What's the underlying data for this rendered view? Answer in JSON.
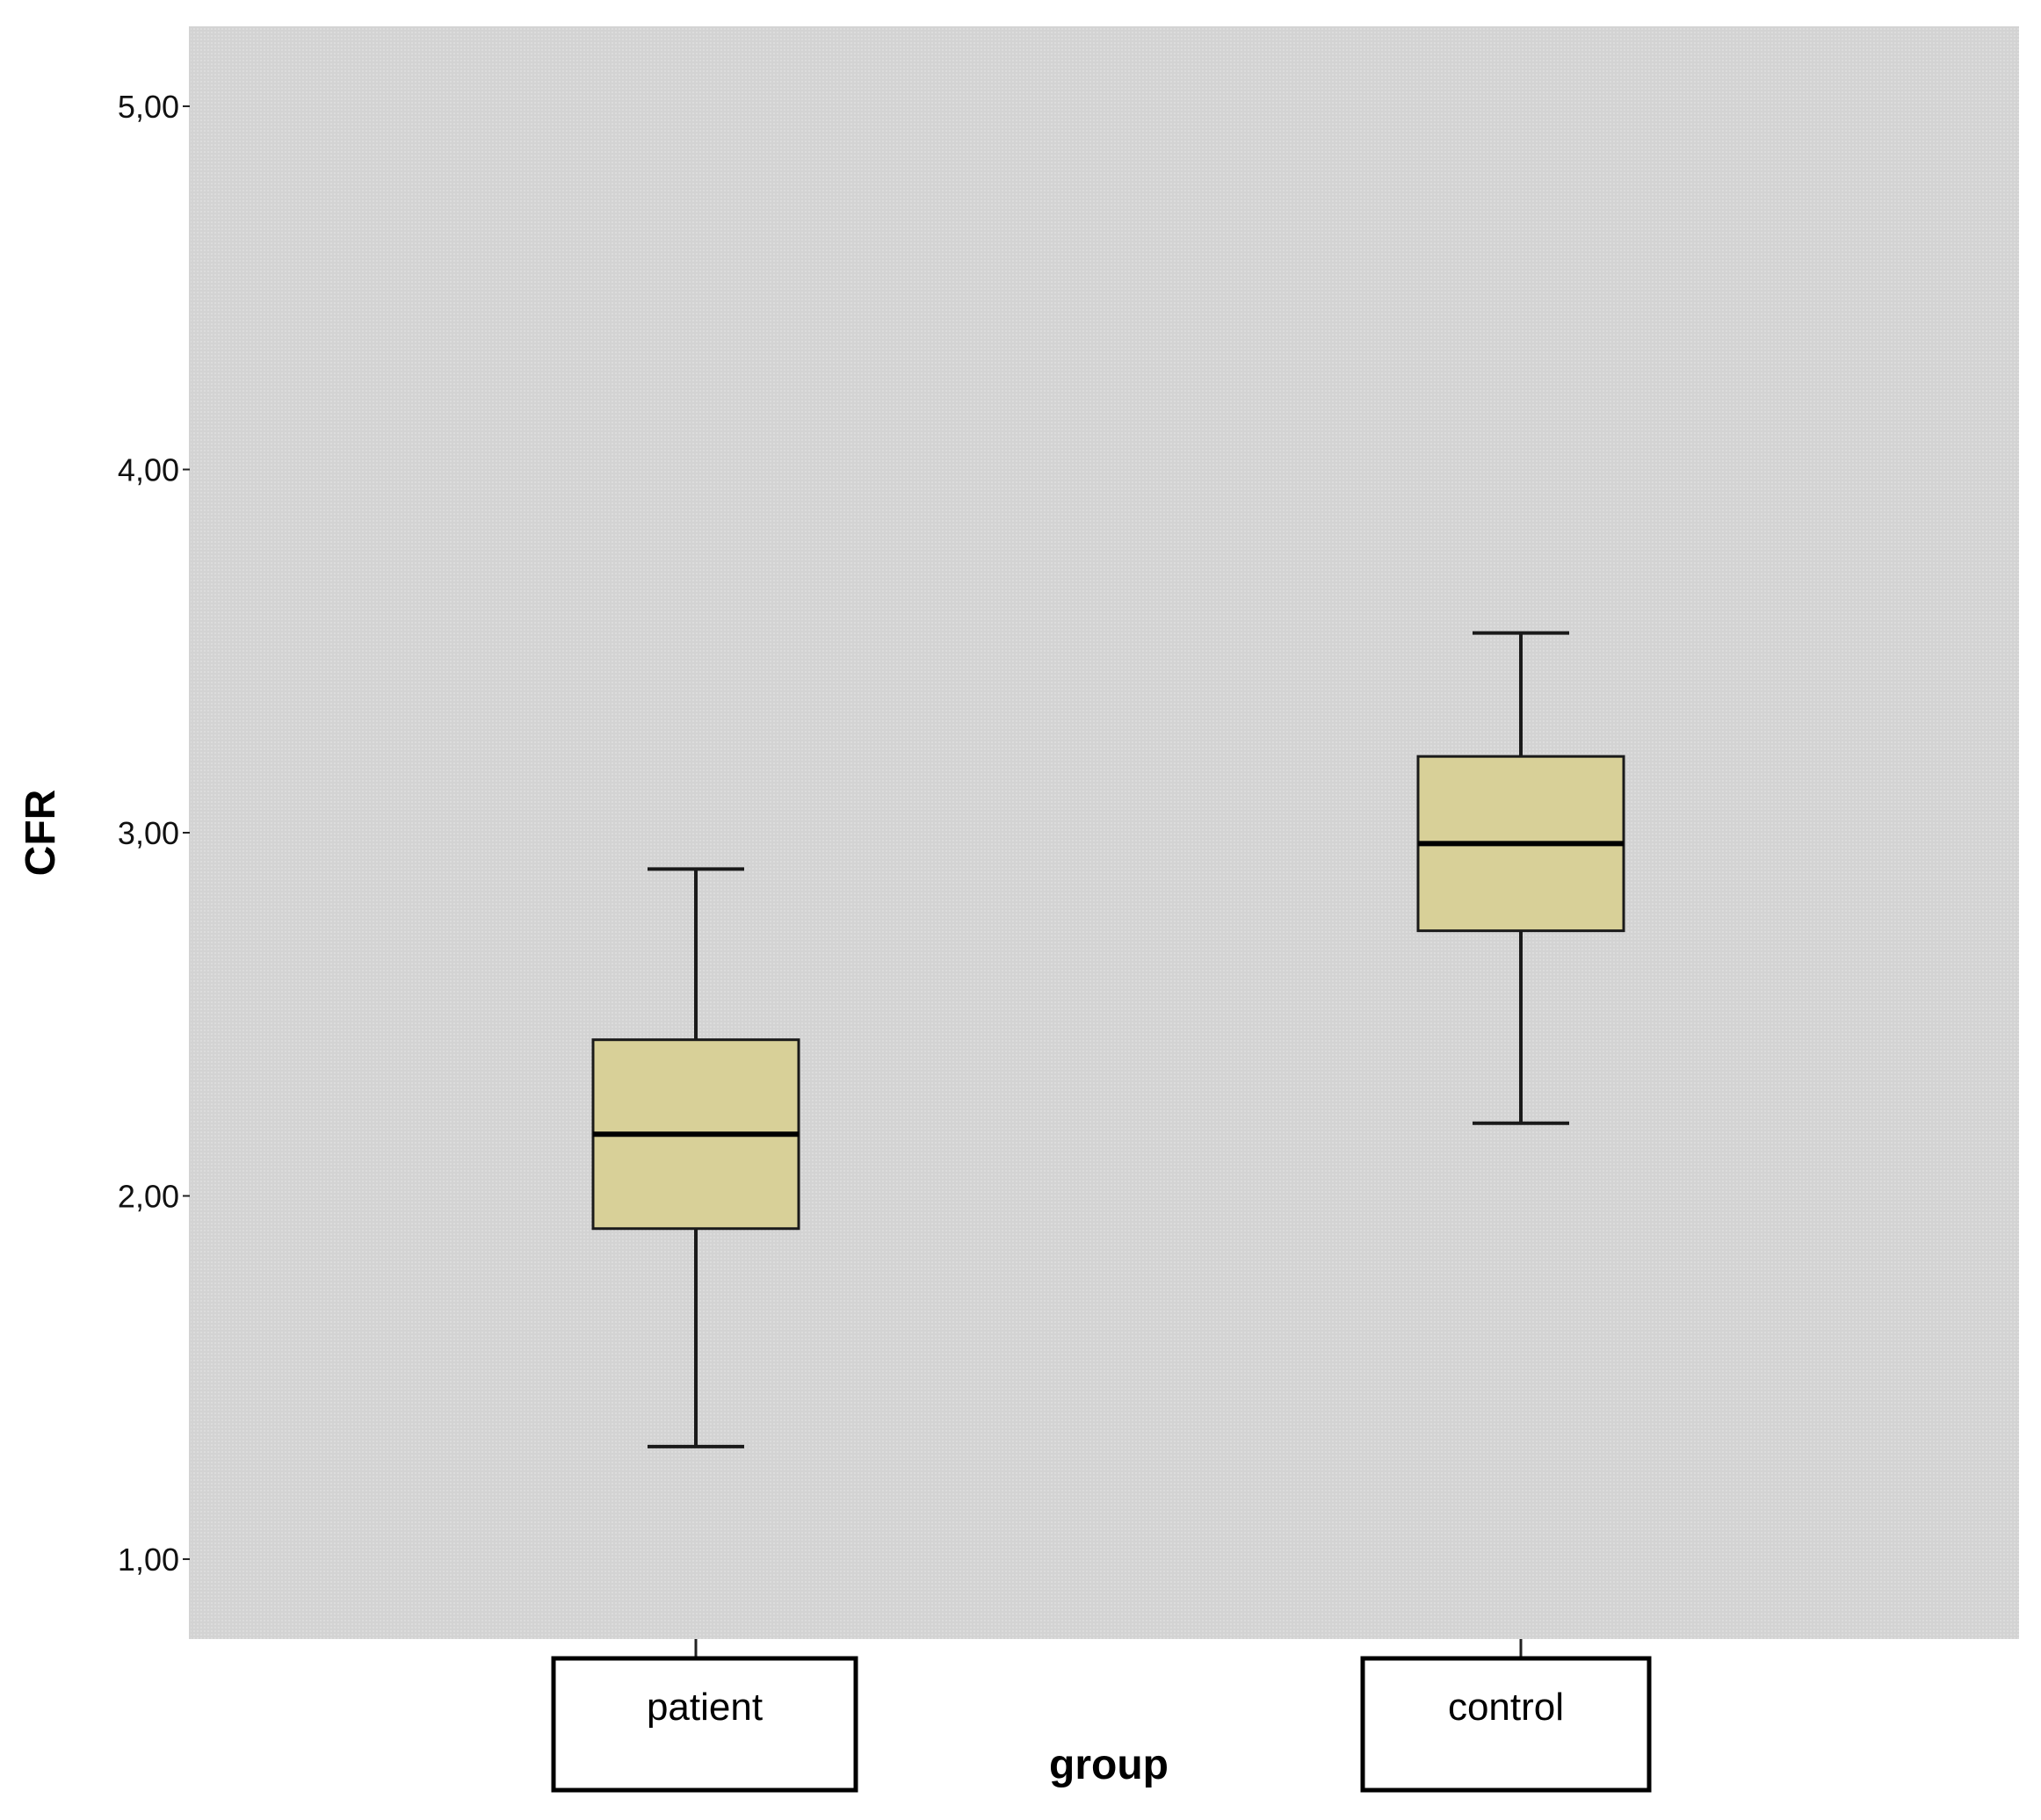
{
  "chart_data": {
    "type": "boxplot",
    "xlabel": "group",
    "ylabel": "CFR",
    "ylim": [
      0.78,
      5.22
    ],
    "yticks": [
      1.0,
      2.0,
      3.0,
      4.0,
      5.0
    ],
    "ytick_labels": [
      "1,00",
      "2,00",
      "3,00",
      "4,00",
      "5,00"
    ],
    "categories": [
      "patient",
      "control"
    ],
    "boxes": [
      {
        "category": "patient",
        "whisker_low": 1.31,
        "q1": 1.91,
        "median": 2.17,
        "q3": 2.43,
        "whisker_high": 2.9
      },
      {
        "category": "control",
        "whisker_low": 2.2,
        "q1": 2.73,
        "median": 2.97,
        "q3": 3.21,
        "whisker_high": 3.55
      }
    ],
    "grid": false,
    "legend": "none",
    "colors": {
      "plot_background": "#d6d6d6",
      "box_fill": "#d8d098",
      "box_stroke": "#1a1a1a",
      "median": "#000000"
    }
  }
}
